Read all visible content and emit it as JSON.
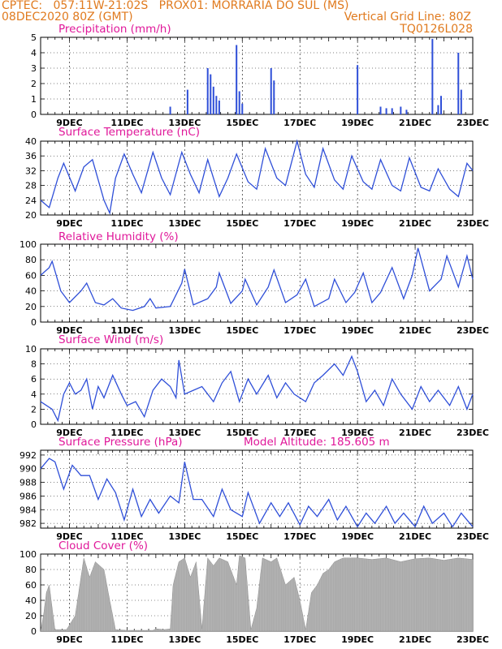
{
  "header": {
    "line1": "CPTEC:   057:11W-21:02S   PROX01: MORRARIA DO SUL (MS)",
    "line2_left": "08DEC2020 80Z (GMT)",
    "line2_right": "Vertical Grid Line: 80Z",
    "line3_right": "TQ0126L028"
  },
  "colors": {
    "header": "#e07a1e",
    "title": "#e0189a",
    "series": "#2f4fd8",
    "cloud": "#a9a9a9"
  },
  "x_labels": [
    "9DEC",
    "11DEC",
    "13DEC",
    "15DEC",
    "17DEC",
    "19DEC",
    "21DEC",
    "23DEC"
  ],
  "chart_data": [
    {
      "type": "bar",
      "title": "Precipitation (mm/h)",
      "ylim": [
        0,
        5
      ],
      "yticks": [
        0,
        1,
        2,
        3,
        4,
        5
      ],
      "x_range_days": [
        8,
        23
      ],
      "bars": [
        [
          12.5,
          0.5
        ],
        [
          13.1,
          1.6
        ],
        [
          13.8,
          3.0
        ],
        [
          13.9,
          2.6
        ],
        [
          14.0,
          1.8
        ],
        [
          14.1,
          1.2
        ],
        [
          14.2,
          0.9
        ],
        [
          14.8,
          4.5
        ],
        [
          14.9,
          1.5
        ],
        [
          15.0,
          0.7
        ],
        [
          16.0,
          3.0
        ],
        [
          16.1,
          2.2
        ],
        [
          19.0,
          3.2
        ],
        [
          19.8,
          0.5
        ],
        [
          20.0,
          0.4
        ],
        [
          20.2,
          0.4
        ],
        [
          20.5,
          0.5
        ],
        [
          20.7,
          0.3
        ],
        [
          21.6,
          4.9
        ],
        [
          21.8,
          0.6
        ],
        [
          21.9,
          1.2
        ],
        [
          22.5,
          4.0
        ],
        [
          22.6,
          1.6
        ]
      ]
    },
    {
      "type": "line",
      "title": "Surface Temperature (nC)",
      "ylim": [
        20,
        40
      ],
      "yticks": [
        20,
        24,
        28,
        32,
        36,
        40
      ],
      "x_range_days": [
        8,
        23
      ],
      "points": [
        [
          8.0,
          24.0
        ],
        [
          8.3,
          22.0
        ],
        [
          8.6,
          30.0
        ],
        [
          8.8,
          34.0
        ],
        [
          9.2,
          26.5
        ],
        [
          9.5,
          33.0
        ],
        [
          9.8,
          35.0
        ],
        [
          10.2,
          24.0
        ],
        [
          10.4,
          20.5
        ],
        [
          10.6,
          30.0
        ],
        [
          10.9,
          36.5
        ],
        [
          11.2,
          31.0
        ],
        [
          11.5,
          26.0
        ],
        [
          11.9,
          37.0
        ],
        [
          12.2,
          30.0
        ],
        [
          12.5,
          25.5
        ],
        [
          12.9,
          37.0
        ],
        [
          13.2,
          31.0
        ],
        [
          13.5,
          26.0
        ],
        [
          13.8,
          35.0
        ],
        [
          14.2,
          25.0
        ],
        [
          14.5,
          30.0
        ],
        [
          14.8,
          36.5
        ],
        [
          15.2,
          29.0
        ],
        [
          15.5,
          27.0
        ],
        [
          15.8,
          38.0
        ],
        [
          16.2,
          30.0
        ],
        [
          16.5,
          28.0
        ],
        [
          16.9,
          40.0
        ],
        [
          17.2,
          31.0
        ],
        [
          17.5,
          27.5
        ],
        [
          17.8,
          38.0
        ],
        [
          18.2,
          29.5
        ],
        [
          18.5,
          27.0
        ],
        [
          18.8,
          36.0
        ],
        [
          19.2,
          29.0
        ],
        [
          19.5,
          27.0
        ],
        [
          19.8,
          35.0
        ],
        [
          20.2,
          28.0
        ],
        [
          20.5,
          26.5
        ],
        [
          20.8,
          35.5
        ],
        [
          21.2,
          27.5
        ],
        [
          21.5,
          26.5
        ],
        [
          21.8,
          32.5
        ],
        [
          22.2,
          27.0
        ],
        [
          22.5,
          25.0
        ],
        [
          22.8,
          34.0
        ],
        [
          23.0,
          32.0
        ]
      ]
    },
    {
      "type": "line",
      "title": "Relative Humidity (%)",
      "ylim": [
        0,
        100
      ],
      "yticks": [
        0,
        20,
        40,
        60,
        80,
        100
      ],
      "x_range_days": [
        8,
        23
      ],
      "points": [
        [
          8.0,
          60.0
        ],
        [
          8.3,
          70.0
        ],
        [
          8.4,
          78.0
        ],
        [
          8.7,
          40.0
        ],
        [
          9.0,
          25.0
        ],
        [
          9.4,
          40.0
        ],
        [
          9.6,
          50.0
        ],
        [
          9.9,
          25.0
        ],
        [
          10.2,
          22.0
        ],
        [
          10.5,
          30.0
        ],
        [
          10.8,
          18.0
        ],
        [
          11.2,
          15.0
        ],
        [
          11.6,
          20.0
        ],
        [
          11.8,
          30.0
        ],
        [
          12.0,
          18.0
        ],
        [
          12.5,
          20.0
        ],
        [
          12.9,
          50.0
        ],
        [
          13.0,
          68.0
        ],
        [
          13.3,
          22.0
        ],
        [
          13.8,
          30.0
        ],
        [
          14.1,
          45.0
        ],
        [
          14.2,
          63.0
        ],
        [
          14.6,
          24.0
        ],
        [
          15.0,
          40.0
        ],
        [
          15.1,
          55.0
        ],
        [
          15.5,
          22.0
        ],
        [
          15.9,
          45.0
        ],
        [
          16.1,
          67.0
        ],
        [
          16.5,
          25.0
        ],
        [
          16.9,
          35.0
        ],
        [
          17.2,
          55.0
        ],
        [
          17.5,
          20.0
        ],
        [
          18.0,
          30.0
        ],
        [
          18.2,
          55.0
        ],
        [
          18.6,
          25.0
        ],
        [
          18.9,
          38.0
        ],
        [
          19.2,
          63.0
        ],
        [
          19.5,
          25.0
        ],
        [
          19.8,
          38.0
        ],
        [
          20.2,
          70.0
        ],
        [
          20.6,
          30.0
        ],
        [
          20.9,
          60.0
        ],
        [
          21.1,
          95.0
        ],
        [
          21.5,
          40.0
        ],
        [
          21.9,
          55.0
        ],
        [
          22.1,
          85.0
        ],
        [
          22.5,
          45.0
        ],
        [
          22.8,
          85.0
        ],
        [
          23.0,
          55.0
        ]
      ]
    },
    {
      "type": "line",
      "title": "Surface Wind (m/s)",
      "ylim": [
        0,
        10
      ],
      "yticks": [
        0,
        2,
        4,
        6,
        8,
        10
      ],
      "x_range_days": [
        8,
        23
      ],
      "points": [
        [
          8.0,
          3.0
        ],
        [
          8.4,
          2.0
        ],
        [
          8.6,
          0.5
        ],
        [
          8.8,
          4.0
        ],
        [
          9.0,
          5.5
        ],
        [
          9.2,
          4.0
        ],
        [
          9.4,
          4.5
        ],
        [
          9.6,
          6.0
        ],
        [
          9.8,
          2.0
        ],
        [
          10.0,
          5.0
        ],
        [
          10.2,
          3.5
        ],
        [
          10.5,
          6.5
        ],
        [
          10.8,
          4.0
        ],
        [
          11.0,
          2.5
        ],
        [
          11.3,
          3.0
        ],
        [
          11.6,
          1.0
        ],
        [
          11.9,
          4.5
        ],
        [
          12.2,
          6.0
        ],
        [
          12.5,
          5.0
        ],
        [
          12.7,
          3.5
        ],
        [
          12.8,
          8.5
        ],
        [
          13.0,
          4.0
        ],
        [
          13.3,
          4.5
        ],
        [
          13.6,
          5.0
        ],
        [
          14.0,
          3.0
        ],
        [
          14.3,
          5.5
        ],
        [
          14.6,
          7.0
        ],
        [
          14.9,
          3.0
        ],
        [
          15.2,
          6.0
        ],
        [
          15.5,
          4.0
        ],
        [
          15.9,
          6.5
        ],
        [
          16.2,
          3.5
        ],
        [
          16.5,
          5.5
        ],
        [
          16.8,
          4.0
        ],
        [
          17.2,
          3.0
        ],
        [
          17.5,
          5.5
        ],
        [
          17.8,
          6.5
        ],
        [
          18.2,
          8.0
        ],
        [
          18.5,
          6.5
        ],
        [
          18.8,
          9.0
        ],
        [
          19.0,
          7.0
        ],
        [
          19.3,
          3.0
        ],
        [
          19.6,
          4.5
        ],
        [
          19.9,
          2.5
        ],
        [
          20.2,
          6.0
        ],
        [
          20.5,
          4.0
        ],
        [
          20.9,
          2.0
        ],
        [
          21.2,
          5.0
        ],
        [
          21.5,
          3.0
        ],
        [
          21.8,
          4.5
        ],
        [
          22.2,
          2.5
        ],
        [
          22.5,
          5.0
        ],
        [
          22.8,
          2.0
        ],
        [
          23.0,
          4.0
        ]
      ]
    },
    {
      "type": "line",
      "title": "Surface Pressure (hPa)",
      "annotation": "Model Altitude: 185.605 m",
      "ylim": [
        981.3,
        992.7
      ],
      "yticks": [
        982,
        984,
        986,
        988,
        990,
        992
      ],
      "x_range_days": [
        8,
        23
      ],
      "points": [
        [
          8.0,
          990.0
        ],
        [
          8.3,
          991.5
        ],
        [
          8.5,
          991.0
        ],
        [
          8.8,
          987.0
        ],
        [
          9.1,
          990.5
        ],
        [
          9.4,
          989.0
        ],
        [
          9.7,
          989.0
        ],
        [
          10.0,
          985.5
        ],
        [
          10.3,
          988.5
        ],
        [
          10.6,
          986.5
        ],
        [
          10.9,
          982.5
        ],
        [
          11.2,
          987.0
        ],
        [
          11.5,
          983.0
        ],
        [
          11.8,
          985.5
        ],
        [
          12.1,
          983.5
        ],
        [
          12.5,
          986.0
        ],
        [
          12.8,
          985.0
        ],
        [
          13.0,
          991.0
        ],
        [
          13.3,
          985.5
        ],
        [
          13.6,
          985.5
        ],
        [
          14.0,
          983.0
        ],
        [
          14.3,
          987.0
        ],
        [
          14.6,
          984.0
        ],
        [
          15.0,
          983.0
        ],
        [
          15.2,
          986.5
        ],
        [
          15.6,
          982.0
        ],
        [
          16.0,
          985.0
        ],
        [
          16.3,
          983.0
        ],
        [
          16.6,
          985.0
        ],
        [
          17.0,
          981.8
        ],
        [
          17.3,
          984.5
        ],
        [
          17.6,
          983.0
        ],
        [
          18.0,
          985.5
        ],
        [
          18.3,
          982.5
        ],
        [
          18.6,
          984.5
        ],
        [
          19.0,
          981.5
        ],
        [
          19.3,
          983.5
        ],
        [
          19.6,
          982.0
        ],
        [
          20.0,
          984.5
        ],
        [
          20.3,
          982.0
        ],
        [
          20.6,
          983.5
        ],
        [
          21.0,
          981.5
        ],
        [
          21.3,
          984.5
        ],
        [
          21.6,
          982.0
        ],
        [
          22.0,
          983.5
        ],
        [
          22.3,
          981.5
        ],
        [
          22.6,
          983.5
        ],
        [
          23.0,
          981.5
        ]
      ]
    },
    {
      "type": "area",
      "title": "Cloud Cover (%)",
      "ylim": [
        0,
        100
      ],
      "yticks": [
        0,
        20,
        40,
        60,
        80,
        100
      ],
      "x_range_days": [
        8,
        23
      ],
      "points": [
        [
          8.0,
          0
        ],
        [
          8.1,
          20
        ],
        [
          8.2,
          50
        ],
        [
          8.3,
          60
        ],
        [
          8.4,
          30
        ],
        [
          8.5,
          2
        ],
        [
          8.9,
          2
        ],
        [
          9.2,
          20
        ],
        [
          9.5,
          95
        ],
        [
          9.7,
          70
        ],
        [
          9.9,
          90
        ],
        [
          10.2,
          80
        ],
        [
          10.4,
          40
        ],
        [
          10.6,
          2
        ],
        [
          11.0,
          1
        ],
        [
          11.9,
          1
        ],
        [
          12.0,
          3
        ],
        [
          12.3,
          2
        ],
        [
          12.5,
          3
        ],
        [
          12.6,
          60
        ],
        [
          12.8,
          90
        ],
        [
          13.0,
          95
        ],
        [
          13.2,
          70
        ],
        [
          13.4,
          90
        ],
        [
          13.6,
          3
        ],
        [
          13.8,
          95
        ],
        [
          14.0,
          85
        ],
        [
          14.2,
          95
        ],
        [
          14.5,
          90
        ],
        [
          14.8,
          60
        ],
        [
          14.9,
          98
        ],
        [
          15.1,
          95
        ],
        [
          15.3,
          2
        ],
        [
          15.5,
          30
        ],
        [
          15.7,
          95
        ],
        [
          16.0,
          90
        ],
        [
          16.2,
          95
        ],
        [
          16.5,
          60
        ],
        [
          16.8,
          70
        ],
        [
          17.0,
          40
        ],
        [
          17.2,
          2
        ],
        [
          17.4,
          50
        ],
        [
          17.6,
          60
        ],
        [
          17.8,
          75
        ],
        [
          18.0,
          80
        ],
        [
          18.2,
          90
        ],
        [
          18.5,
          95
        ],
        [
          19.0,
          95
        ],
        [
          19.5,
          93
        ],
        [
          20.0,
          95
        ],
        [
          20.5,
          90
        ],
        [
          21.0,
          94
        ],
        [
          21.5,
          95
        ],
        [
          22.0,
          92
        ],
        [
          22.5,
          95
        ],
        [
          23.0,
          93
        ]
      ]
    }
  ]
}
